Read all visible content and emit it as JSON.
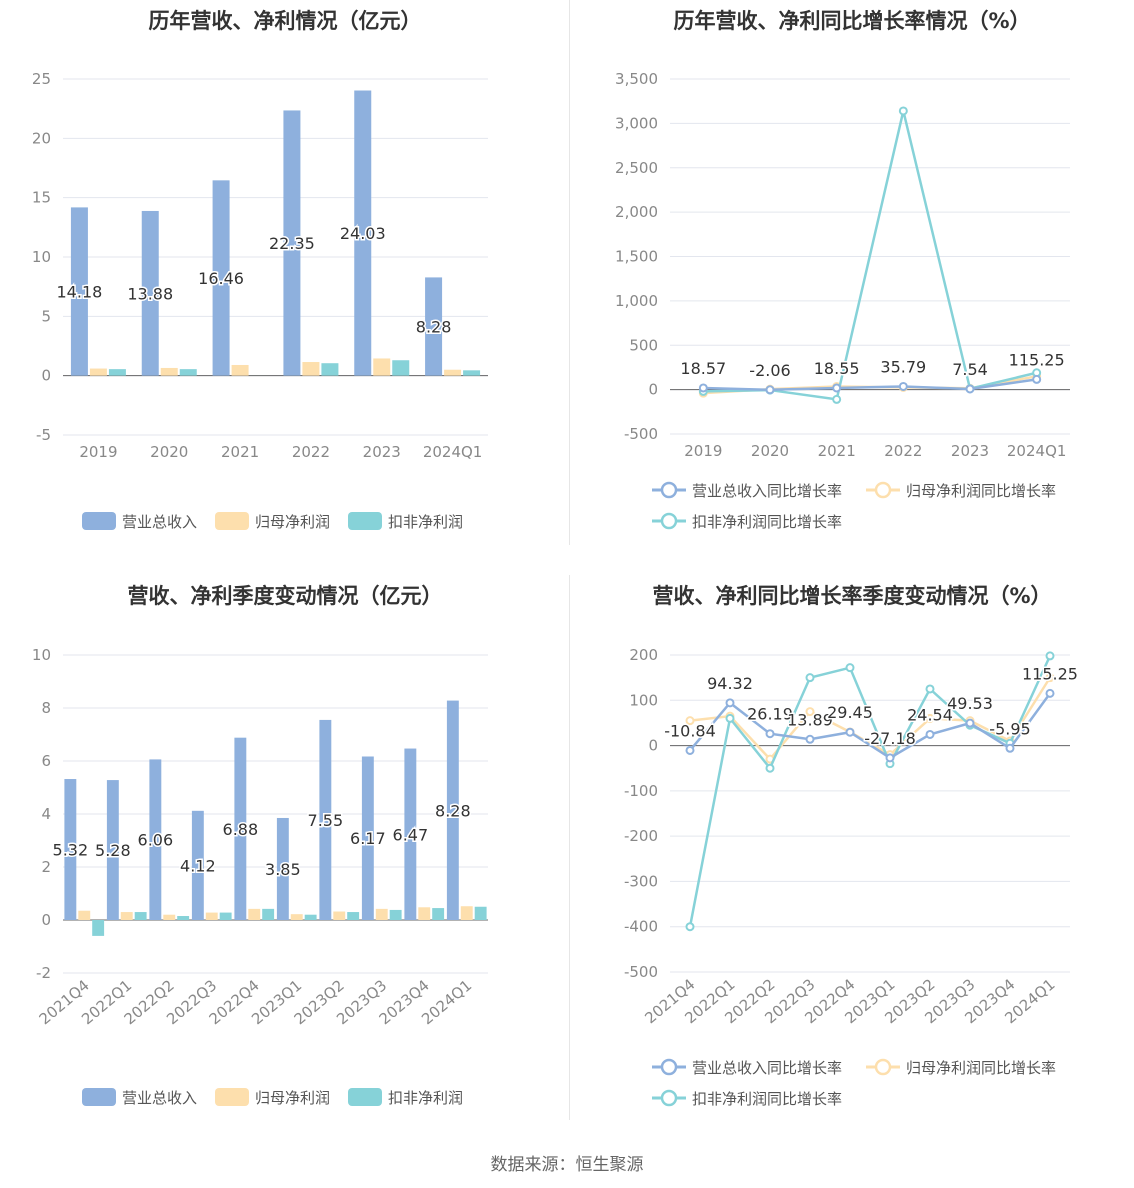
{
  "footer": "数据来源：恒生聚源",
  "colors": {
    "revenue": "#8eb0dd",
    "net_profit": "#fddfad",
    "deducted_profit": "#86d2d8"
  },
  "chart_data": [
    {
      "type": "bar",
      "title": "历年营收、净利情况（亿元）",
      "categories": [
        "2019",
        "2020",
        "2021",
        "2022",
        "2023",
        "2024Q1"
      ],
      "ylim": [
        -5,
        25
      ],
      "yticks": [
        -5,
        0,
        5,
        10,
        15,
        20,
        25
      ],
      "grid": true,
      "legend": "bottom",
      "series": [
        {
          "name": "营业总收入",
          "values": [
            14.18,
            13.88,
            16.46,
            22.35,
            24.03,
            8.28
          ],
          "labels": [
            "14.18",
            "13.88",
            "16.46",
            "22.35",
            "24.03",
            "8.28"
          ]
        },
        {
          "name": "归母净利润",
          "values": [
            0.6,
            0.65,
            0.9,
            1.15,
            1.45,
            0.5
          ]
        },
        {
          "name": "扣非净利润",
          "values": [
            0.55,
            0.55,
            0.0,
            1.05,
            1.3,
            0.45
          ]
        }
      ]
    },
    {
      "type": "line",
      "title": "历年营收、净利同比增长率情况（%）",
      "categories": [
        "2019",
        "2020",
        "2021",
        "2022",
        "2023",
        "2024Q1"
      ],
      "ylim": [
        -500,
        3500
      ],
      "yticks": [
        -500,
        0,
        500,
        1000,
        1500,
        2000,
        2500,
        3000,
        3500
      ],
      "ytick_labels": [
        "-500",
        "0",
        "500",
        "1,000",
        "1,500",
        "2,000",
        "2,500",
        "3,000",
        "3,500"
      ],
      "grid": true,
      "legend": "bottom",
      "series": [
        {
          "name": "营业总收入同比增长率",
          "values": [
            18.57,
            -2.06,
            18.55,
            35.79,
            7.54,
            115.25
          ],
          "labels": [
            "18.57",
            "-2.06",
            "18.55",
            "35.79",
            "7.54",
            "115.25"
          ]
        },
        {
          "name": "归母净利润同比增长率",
          "values": [
            -40,
            5,
            35,
            25,
            15,
            150
          ]
        },
        {
          "name": "扣非净利润同比增长率",
          "values": [
            -20,
            -5,
            -110,
            3140,
            10,
            190
          ]
        }
      ]
    },
    {
      "type": "bar",
      "title": "营收、净利季度变动情况（亿元）",
      "categories": [
        "2021Q4",
        "2022Q1",
        "2022Q2",
        "2022Q3",
        "2022Q4",
        "2023Q1",
        "2023Q2",
        "2023Q3",
        "2023Q4",
        "2024Q1"
      ],
      "ylim": [
        -2,
        10
      ],
      "yticks": [
        -2,
        0,
        2,
        4,
        6,
        8,
        10
      ],
      "grid": true,
      "legend": "bottom",
      "series": [
        {
          "name": "营业总收入",
          "values": [
            5.32,
            5.28,
            6.06,
            4.12,
            6.88,
            3.85,
            7.55,
            6.17,
            6.47,
            8.28
          ],
          "labels": [
            "5.32",
            "5.28",
            "6.06",
            "4.12",
            "6.88",
            "3.85",
            "7.55",
            "6.17",
            "6.47",
            "8.28"
          ]
        },
        {
          "name": "归母净利润",
          "values": [
            0.35,
            0.3,
            0.2,
            0.28,
            0.42,
            0.22,
            0.32,
            0.42,
            0.48,
            0.52
          ]
        },
        {
          "name": "扣非净利润",
          "values": [
            -0.6,
            0.3,
            0.15,
            0.28,
            0.42,
            0.2,
            0.3,
            0.38,
            0.45,
            0.5
          ]
        }
      ]
    },
    {
      "type": "line",
      "title": "营收、净利同比增长率季度变动情况（%）",
      "categories": [
        "2021Q4",
        "2022Q1",
        "2022Q2",
        "2022Q3",
        "2022Q4",
        "2023Q1",
        "2023Q2",
        "2023Q3",
        "2023Q4",
        "2024Q1"
      ],
      "ylim": [
        -500,
        200
      ],
      "yticks": [
        -500,
        -400,
        -300,
        -200,
        -100,
        0,
        100,
        200
      ],
      "grid": true,
      "legend": "bottom",
      "series": [
        {
          "name": "营业总收入同比增长率",
          "values": [
            -10.84,
            94.32,
            26.19,
            13.89,
            29.45,
            -27.18,
            24.54,
            49.53,
            -5.95,
            115.25
          ],
          "labels": [
            "-10.84",
            "94.32",
            "26.19",
            "13.89",
            "29.45",
            "-27.18",
            "24.54",
            "49.53",
            "-5.95",
            "115.25"
          ]
        },
        {
          "name": "归母净利润同比增长率",
          "values": [
            55,
            65,
            -30,
            75,
            30,
            -20,
            60,
            55,
            10,
            150
          ]
        },
        {
          "name": "扣非净利润同比增长率",
          "values": [
            -400,
            60,
            -50,
            150,
            172,
            -40,
            125,
            45,
            5,
            198
          ]
        }
      ]
    }
  ]
}
